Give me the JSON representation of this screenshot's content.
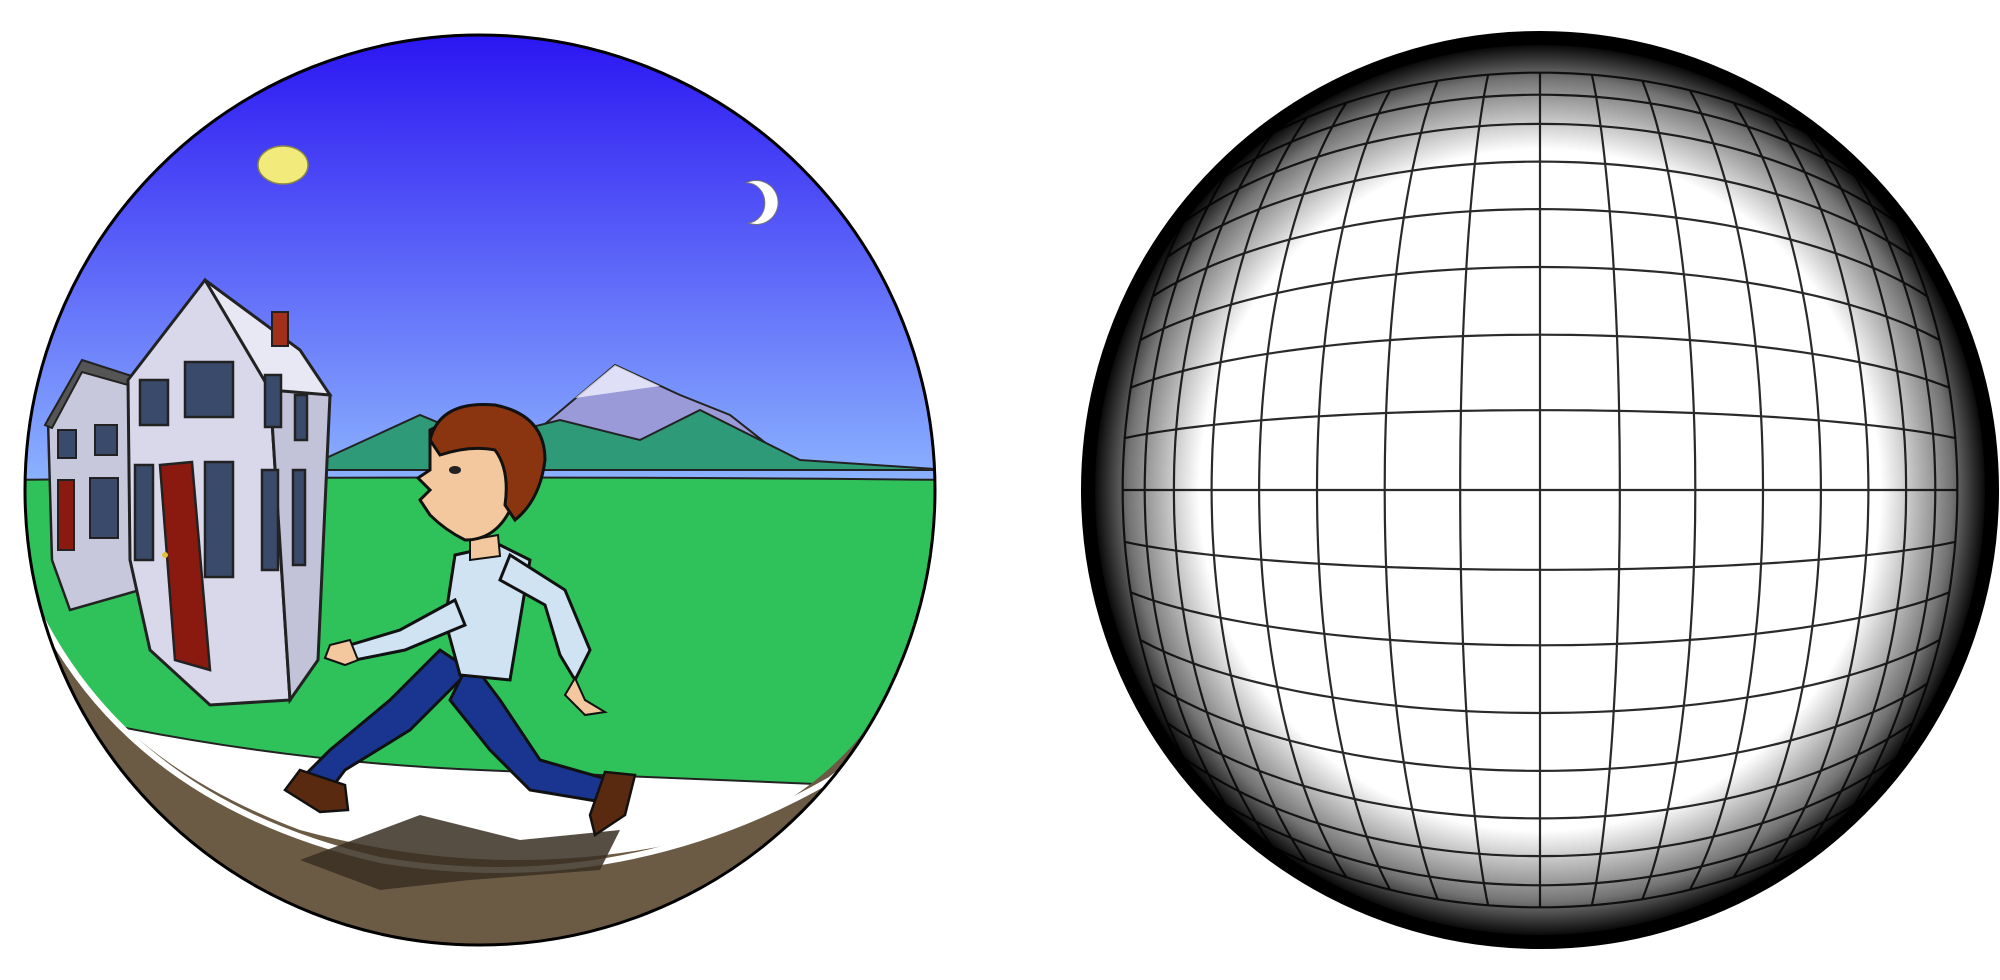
{
  "figure": {
    "panels": [
      {
        "id": "fisheye-scene",
        "kind": "illustration"
      },
      {
        "id": "fisheye-grid",
        "kind": "distortion-grid",
        "grid_lines_per_axis": 17
      }
    ]
  },
  "colors": {
    "sky_top": "#2a14f2",
    "sky_bottom": "#8fb8ff",
    "grass": "#2fc25a",
    "ground": "#6b5b45",
    "sun": "#f2ea7a",
    "mountain_back": "#9a9ad8",
    "mountain_front": "#2f9a78",
    "house_wall": "#d8d8ea",
    "door": "#8a1a10",
    "shirt": "#cfe3f3",
    "pants": "#1a3590",
    "hair": "#8a3510",
    "skin": "#f3c89e",
    "shoe": "#5a2a10",
    "grid_line": "#2a2a2a",
    "rim": "#000000"
  }
}
